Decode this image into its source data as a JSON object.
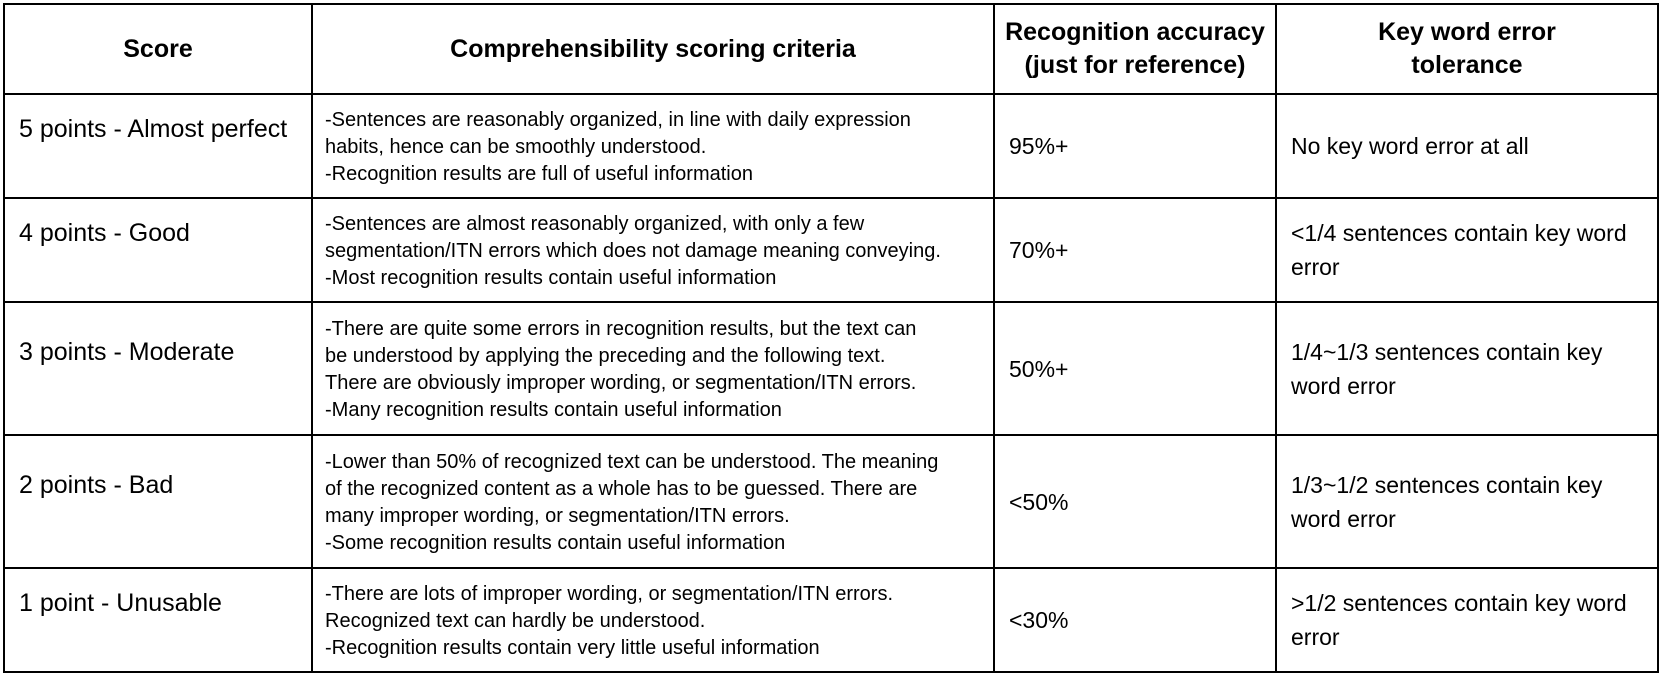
{
  "table": {
    "headers": {
      "score": "Score",
      "criteria": "Comprehensibility scoring criteria",
      "accuracy_line1": "Recognition accuracy",
      "accuracy_line2": "(just for reference)",
      "tolerance_line1": "Key word error",
      "tolerance_line2": "tolerance"
    },
    "rows": [
      {
        "score": "5 points - Almost perfect",
        "criteria": [
          "-Sentences are reasonably organized, in line with daily expression",
          "habits, hence can be smoothly understood.",
          "-Recognition results are full of useful information"
        ],
        "accuracy": "95%+",
        "tolerance": "No key word error at all"
      },
      {
        "score": "4 points - Good",
        "criteria": [
          "-Sentences are almost reasonably organized, with only a few",
          "segmentation/ITN errors which does not damage meaning conveying.",
          "-Most recognition results contain useful information"
        ],
        "accuracy": "70%+",
        "tolerance": "<1/4 sentences contain key word error"
      },
      {
        "score": "3 points - Moderate",
        "criteria": [
          "-There are quite some errors in recognition results, but the text can",
          "be understood by applying the preceding and the following text.",
          "There are obviously improper wording, or segmentation/ITN errors.",
          "-Many recognition results contain useful information"
        ],
        "accuracy": "50%+",
        "tolerance": "1/4~1/3 sentences contain key word error"
      },
      {
        "score": "2 points - Bad",
        "criteria": [
          "-Lower than 50% of recognized text can be understood. The meaning",
          "of the recognized content as a whole has to be guessed. There are",
          "many improper wording, or segmentation/ITN errors.",
          "-Some recognition results contain useful information"
        ],
        "accuracy": "<50%",
        "tolerance": "1/3~1/2 sentences contain key word error"
      },
      {
        "score": "1 point - Unusable",
        "criteria": [
          "-There are lots of improper wording, or segmentation/ITN errors.",
          "Recognized text can hardly be understood.",
          "-Recognition results contain very little useful information"
        ],
        "accuracy": "<30%",
        "tolerance": ">1/2 sentences contain key word error"
      }
    ]
  }
}
